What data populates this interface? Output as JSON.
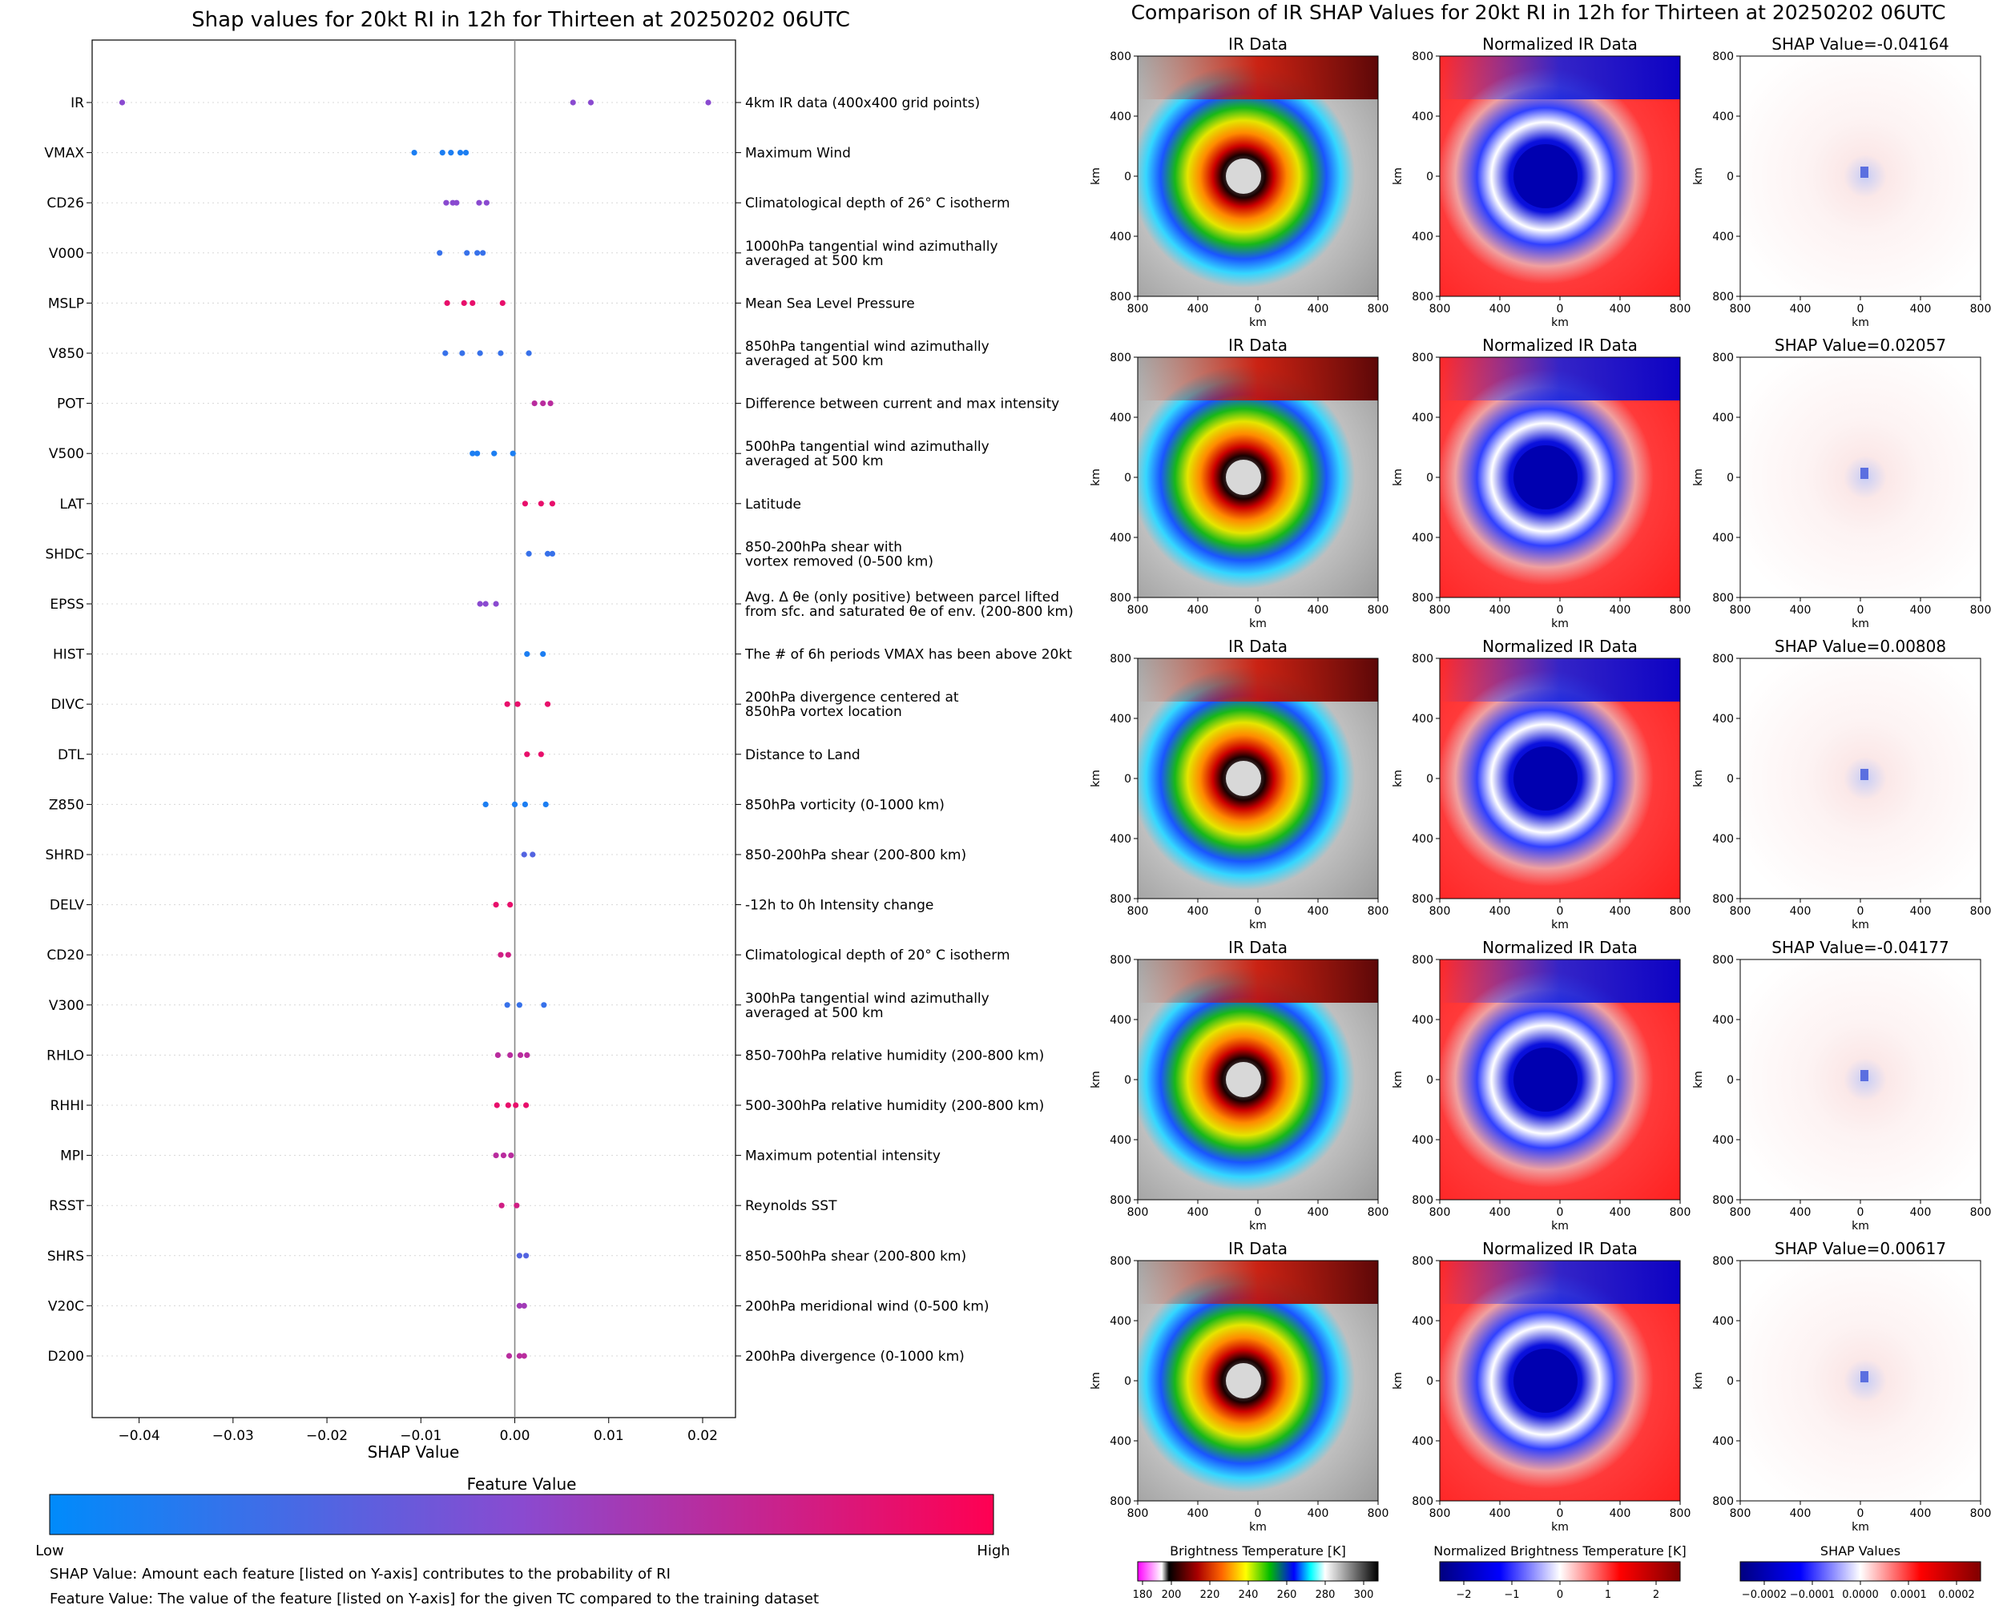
{
  "left_panel": {
    "title": "Shap values for 20kt RI in 12h for Thirteen at 20250202 06UTC",
    "xlabel": "SHAP Value",
    "colorbar_label": "Feature Value",
    "colorbar_low": "Low",
    "colorbar_high": "High",
    "colorbar_colors": [
      "#008bfb",
      "#8a4ad0",
      "#ff0052"
    ],
    "footnote1": "SHAP Value: Amount each feature [listed on Y-axis] contributes to the probability of RI",
    "footnote2": "Feature Value: The value of the feature [listed on Y-axis] for the given TC compared to the training dataset"
  },
  "right_panel": {
    "title": "Comparison of IR SHAP Values for 20kt RI in 12h for Thirteen at 20250202 06UTC",
    "col_titles": [
      "IR Data",
      "Normalized IR Data"
    ],
    "shap_titles": [
      "SHAP Value=-0.04164",
      "SHAP Value=0.02057",
      "SHAP Value=0.00808",
      "SHAP Value=-0.04177",
      "SHAP Value=0.00617"
    ],
    "axis_unit": "km",
    "axis_ticks": [
      "800",
      "400",
      "0",
      "400",
      "800"
    ],
    "cb_ir_label": "Brightness Temperature [K]",
    "cb_ir_ticks": [
      "180",
      "200",
      "220",
      "240",
      "260",
      "280",
      "300"
    ],
    "cb_norm_label": "Normalized Brightness Temperature [K]",
    "cb_norm_ticks": [
      "−2",
      "−1",
      "0",
      "1",
      "2"
    ],
    "cb_shap_label": "SHAP Values",
    "cb_shap_ticks": [
      "−0.0002",
      "−0.0001",
      "0.0000",
      "0.0001",
      "0.0002"
    ]
  },
  "chart_data": {
    "type": "scatter",
    "xlabel": "SHAP Value",
    "xlim": [
      -0.045,
      0.0235
    ],
    "xticks": [
      -0.04,
      -0.03,
      -0.02,
      -0.01,
      0.0,
      0.01,
      0.02
    ],
    "xtick_labels": [
      "−0.04",
      "−0.03",
      "−0.02",
      "−0.01",
      "0.00",
      "0.01",
      "0.02"
    ],
    "features": [
      {
        "name": "IR",
        "desc": "4km IR data (400x400 grid points)",
        "points": [
          [
            -0.0418,
            0.5
          ],
          [
            0.0062,
            0.5
          ],
          [
            0.0081,
            0.5
          ],
          [
            0.0206,
            0.5
          ]
        ]
      },
      {
        "name": "VMAX",
        "desc": "Maximum Wind",
        "points": [
          [
            -0.0107,
            0.1
          ],
          [
            -0.0077,
            0.1
          ],
          [
            -0.0068,
            0.1
          ],
          [
            -0.0058,
            0.1
          ],
          [
            -0.0052,
            0.1
          ]
        ]
      },
      {
        "name": "CD26",
        "desc": "Climatological depth of 26° C isotherm",
        "points": [
          [
            -0.0073,
            0.5
          ],
          [
            -0.0066,
            0.5
          ],
          [
            -0.0062,
            0.5
          ],
          [
            -0.0038,
            0.5
          ],
          [
            -0.003,
            0.5
          ]
        ]
      },
      {
        "name": "V000",
        "desc": "1000hPa tangential wind azimuthally|averaged at 500 km",
        "points": [
          [
            -0.008,
            0.2
          ],
          [
            -0.0051,
            0.2
          ],
          [
            -0.004,
            0.2
          ],
          [
            -0.0034,
            0.2
          ]
        ]
      },
      {
        "name": "MSLP",
        "desc": "Mean Sea Level Pressure",
        "points": [
          [
            -0.0072,
            0.9
          ],
          [
            -0.0054,
            0.9
          ],
          [
            -0.0045,
            0.9
          ],
          [
            -0.0013,
            0.9
          ]
        ]
      },
      {
        "name": "V850",
        "desc": "850hPa tangential wind azimuthally|averaged at 500 km",
        "points": [
          [
            -0.0074,
            0.2
          ],
          [
            -0.0056,
            0.2
          ],
          [
            -0.0037,
            0.2
          ],
          [
            -0.0015,
            0.2
          ],
          [
            0.0015,
            0.2
          ]
        ]
      },
      {
        "name": "POT",
        "desc": "Difference between current and max intensity",
        "points": [
          [
            0.0021,
            0.7
          ],
          [
            0.003,
            0.7
          ],
          [
            0.0038,
            0.7
          ]
        ]
      },
      {
        "name": "V500",
        "desc": "500hPa tangential wind azimuthally|averaged at 500 km",
        "points": [
          [
            -0.0045,
            0.1
          ],
          [
            -0.004,
            0.1
          ],
          [
            -0.0022,
            0.1
          ],
          [
            -0.0002,
            0.1
          ]
        ]
      },
      {
        "name": "LAT",
        "desc": "Latitude",
        "points": [
          [
            0.0011,
            0.9
          ],
          [
            0.0028,
            0.9
          ],
          [
            0.004,
            0.9
          ]
        ]
      },
      {
        "name": "SHDC",
        "desc": "850-200hPa shear with|vortex removed (0-500 km)",
        "points": [
          [
            0.0015,
            0.2
          ],
          [
            0.0035,
            0.2
          ],
          [
            0.004,
            0.2
          ]
        ]
      },
      {
        "name": "EPSS",
        "desc": "Avg. Δ θe (only positive) between parcel lifted|from sfc. and saturated θe of env. (200-800 km)",
        "points": [
          [
            -0.0037,
            0.5
          ],
          [
            -0.0031,
            0.5
          ],
          [
            -0.002,
            0.5
          ]
        ]
      },
      {
        "name": "HIST",
        "desc": "The # of 6h periods VMAX has been above 20kt",
        "points": [
          [
            0.0013,
            0.1
          ],
          [
            0.003,
            0.1
          ]
        ]
      },
      {
        "name": "DIVC",
        "desc": "200hPa divergence centered at|850hPa vortex location",
        "points": [
          [
            -0.0008,
            0.9
          ],
          [
            0.0003,
            0.9
          ],
          [
            0.0035,
            0.9
          ]
        ]
      },
      {
        "name": "DTL",
        "desc": "Distance to Land",
        "points": [
          [
            0.0013,
            0.9
          ],
          [
            0.0028,
            0.9
          ]
        ]
      },
      {
        "name": "Z850",
        "desc": "850hPa vorticity (0-1000 km)",
        "points": [
          [
            -0.0031,
            0.1
          ],
          [
            0.0,
            0.1
          ],
          [
            0.0011,
            0.1
          ],
          [
            0.0033,
            0.1
          ]
        ]
      },
      {
        "name": "SHRD",
        "desc": "850-200hPa shear (200-800 km)",
        "points": [
          [
            0.001,
            0.3
          ],
          [
            0.0019,
            0.3
          ]
        ]
      },
      {
        "name": "DELV",
        "desc": "-12h to 0h Intensity change",
        "points": [
          [
            -0.002,
            0.9
          ],
          [
            -0.0005,
            0.9
          ]
        ]
      },
      {
        "name": "CD20",
        "desc": "Climatological depth of 20° C isotherm",
        "points": [
          [
            -0.0015,
            0.8
          ],
          [
            -0.0007,
            0.8
          ]
        ]
      },
      {
        "name": "V300",
        "desc": "300hPa tangential wind azimuthally|averaged at 500 km",
        "points": [
          [
            -0.0008,
            0.2
          ],
          [
            0.0005,
            0.2
          ],
          [
            0.0031,
            0.2
          ]
        ]
      },
      {
        "name": "RHLO",
        "desc": "850-700hPa relative humidity (200-800 km)",
        "points": [
          [
            -0.0018,
            0.7
          ],
          [
            -0.0005,
            0.7
          ],
          [
            0.0006,
            0.7
          ],
          [
            0.0013,
            0.7
          ]
        ]
      },
      {
        "name": "RHHI",
        "desc": "500-300hPa relative humidity (200-800 km)",
        "points": [
          [
            -0.0019,
            0.9
          ],
          [
            -0.0007,
            0.9
          ],
          [
            0.0001,
            0.9
          ],
          [
            0.0012,
            0.9
          ]
        ]
      },
      {
        "name": "MPI",
        "desc": "Maximum potential intensity",
        "points": [
          [
            -0.002,
            0.7
          ],
          [
            -0.0012,
            0.7
          ],
          [
            -0.0004,
            0.7
          ]
        ]
      },
      {
        "name": "RSST",
        "desc": "Reynolds SST",
        "points": [
          [
            -0.0014,
            0.8
          ],
          [
            0.0002,
            0.8
          ]
        ]
      },
      {
        "name": "SHRS",
        "desc": "850-500hPa shear (200-800 km)",
        "points": [
          [
            0.0005,
            0.3
          ],
          [
            0.0012,
            0.3
          ]
        ]
      },
      {
        "name": "V20C",
        "desc": "200hPa meridional wind (0-500 km)",
        "points": [
          [
            0.0005,
            0.6
          ],
          [
            0.001,
            0.6
          ]
        ]
      },
      {
        "name": "D200",
        "desc": "200hPa divergence (0-1000 km)",
        "points": [
          [
            -0.0006,
            0.7
          ],
          [
            0.0005,
            0.7
          ],
          [
            0.001,
            0.7
          ]
        ]
      }
    ]
  }
}
